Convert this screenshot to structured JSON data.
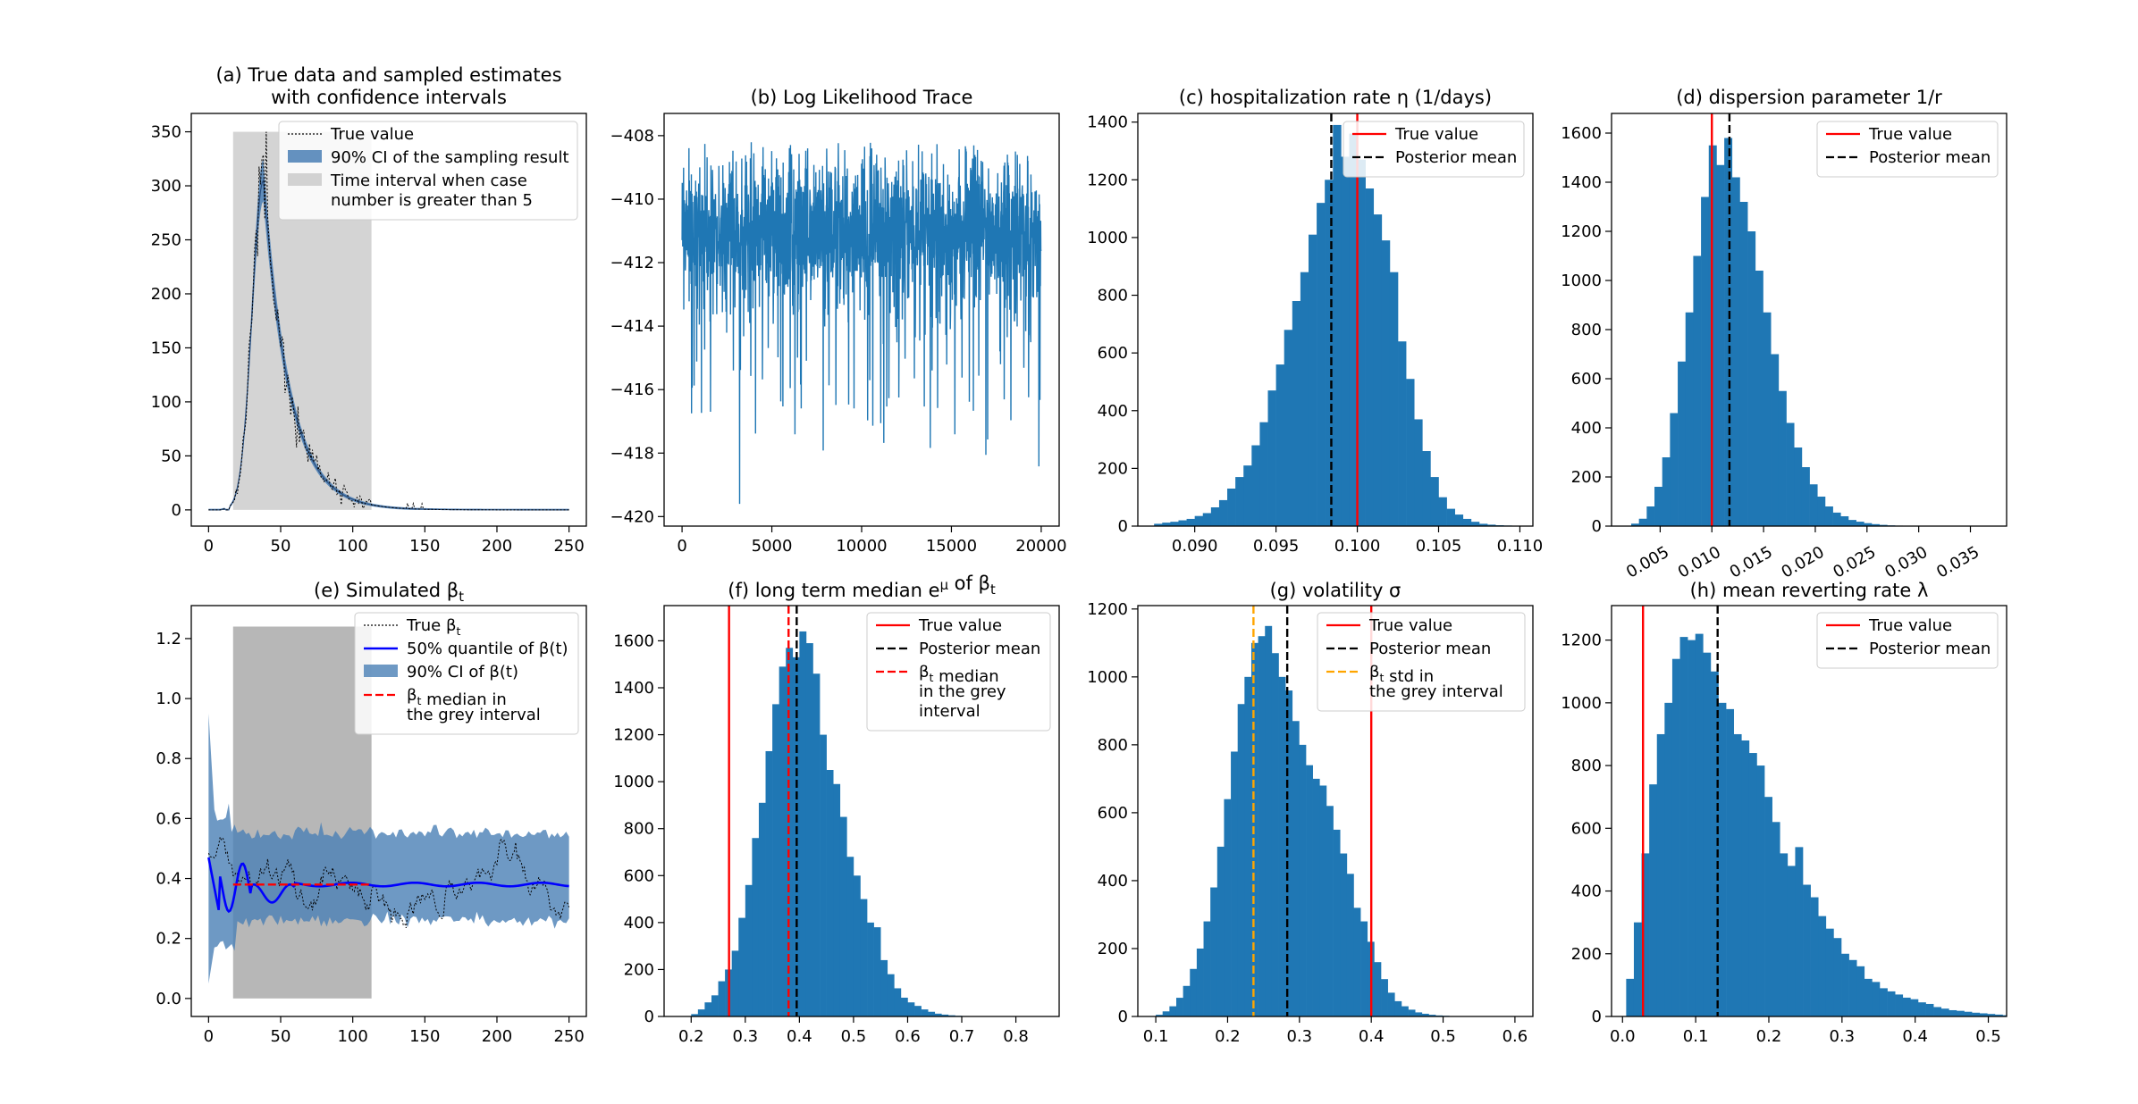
{
  "figure": {
    "background": "#ffffff"
  },
  "colors": {
    "blue": "#1f77b4",
    "band": "#4a7fb5",
    "red": "#ff0000",
    "black": "#000000",
    "orange": "#ffa500",
    "grey": "#bdbdbd",
    "darkgrey": "#999999",
    "line_blue": "#0000ff"
  },
  "chart_data": [
    {
      "id": "a",
      "type": "line",
      "title": "(a) True data and sampled estimates",
      "title2": "with confidence intervals",
      "xlim": [
        -12,
        262
      ],
      "ylim": [
        -15,
        367
      ],
      "xticks": [
        0,
        50,
        100,
        150,
        200,
        250
      ],
      "yticks": [
        0,
        50,
        100,
        150,
        200,
        250,
        300,
        350
      ],
      "shade": {
        "x0": 17,
        "x1": 113,
        "y0": 0,
        "y1": 350
      },
      "series": [
        {
          "name": "True value",
          "kind": "true_cases"
        },
        {
          "name": "90% CI of the sampling result",
          "kind": "ci_band"
        }
      ],
      "legend": [
        "True value",
        "90% CI of the sampling result",
        "Time interval when case\n number is greater than 5"
      ],
      "legend_loc": "top-right"
    },
    {
      "id": "b",
      "type": "line",
      "title": "(b) Log Likelihood Trace",
      "xlim": [
        -1000,
        21000
      ],
      "ylim": [
        -420.3,
        -407.3
      ],
      "xticks": [
        0,
        5000,
        10000,
        15000,
        20000
      ],
      "yticks": [
        -420,
        -418,
        -416,
        -414,
        -412,
        -410,
        -408
      ],
      "n": 20000,
      "center": -411.0,
      "upper_bound": -408.2,
      "min_value": -419.6
    },
    {
      "id": "c",
      "type": "bar",
      "title": "(c) hospitalization rate η (1/days)",
      "xlim": [
        0.0865,
        0.1108
      ],
      "ylim": [
        0,
        1430
      ],
      "xticks": [
        0.09,
        0.095,
        0.1,
        0.105,
        0.11
      ],
      "yticks": [
        0,
        200,
        400,
        600,
        800,
        1000,
        1200,
        1400
      ],
      "bin_start": 0.0875,
      "bin_width": 0.0005,
      "counts": [
        8,
        12,
        15,
        20,
        25,
        35,
        45,
        65,
        90,
        130,
        170,
        210,
        280,
        360,
        470,
        560,
        680,
        780,
        880,
        1010,
        1120,
        1200,
        1390,
        1280,
        1360,
        1270,
        1170,
        1080,
        990,
        880,
        640,
        510,
        370,
        260,
        170,
        100,
        60,
        40,
        25,
        15,
        8,
        5,
        3,
        2,
        1
      ],
      "vlines": [
        {
          "label": "True value",
          "x": 0.1,
          "style": "solid",
          "color": "#ff0000"
        },
        {
          "label": "Posterior mean",
          "x": 0.0984,
          "style": "dashed",
          "color": "#000000"
        }
      ],
      "legend": [
        "True value",
        "Posterior mean"
      ]
    },
    {
      "id": "d",
      "type": "bar",
      "title": "(d) dispersion parameter 1/r",
      "xlim": [
        0.0003,
        0.0385
      ],
      "ylim": [
        0,
        1680
      ],
      "xticks": [
        0.005,
        0.01,
        0.015,
        0.02,
        0.025,
        0.03,
        0.035
      ],
      "yticks": [
        0,
        200,
        400,
        600,
        800,
        1000,
        1200,
        1400,
        1600
      ],
      "bin_start": 0.0022,
      "bin_width": 0.00075,
      "counts": [
        10,
        30,
        80,
        160,
        280,
        460,
        670,
        870,
        1100,
        1340,
        1550,
        1470,
        1580,
        1420,
        1320,
        1200,
        1040,
        870,
        700,
        550,
        420,
        320,
        240,
        170,
        120,
        80,
        55,
        40,
        25,
        18,
        12,
        8,
        5,
        3,
        2,
        1,
        1,
        1,
        1,
        1,
        1,
        1,
        1,
        1,
        1,
        1,
        1,
        1
      ],
      "vlines": [
        {
          "label": "True value",
          "x": 0.01,
          "style": "solid",
          "color": "#ff0000"
        },
        {
          "label": "Posterior mean",
          "x": 0.0117,
          "style": "dashed",
          "color": "#000000"
        }
      ],
      "legend": [
        "True value",
        "Posterior mean"
      ]
    },
    {
      "id": "e",
      "type": "line",
      "title": "(e) Simulated β",
      "title_sub": "t",
      "xlim": [
        -12,
        262
      ],
      "ylim": [
        -0.06,
        1.31
      ],
      "xticks": [
        0,
        50,
        100,
        150,
        200,
        250
      ],
      "yticks": [
        0.0,
        0.2,
        0.4,
        0.6,
        0.8,
        1.0,
        1.2
      ],
      "shade": {
        "x0": 17,
        "x1": 113,
        "y0": 0,
        "y1": 1.24
      },
      "median_line": {
        "x0": 17,
        "x1": 113,
        "y": 0.38
      },
      "legend": [
        "True β_t",
        "50% quantile of β(t)",
        "90% CI of β(t)",
        "β_t median in\n the grey interval"
      ],
      "legend_loc": "top-right"
    },
    {
      "id": "f",
      "type": "bar",
      "title": "(f) long term median e^μ of β_t",
      "xlim": [
        0.15,
        0.88
      ],
      "ylim": [
        0,
        1750
      ],
      "xticks": [
        0.2,
        0.3,
        0.4,
        0.5,
        0.6,
        0.7,
        0.8
      ],
      "yticks": [
        0,
        200,
        400,
        600,
        800,
        1000,
        1200,
        1400,
        1600
      ],
      "bin_start": 0.2,
      "bin_width": 0.0125,
      "counts": [
        10,
        30,
        60,
        90,
        150,
        200,
        280,
        420,
        560,
        760,
        910,
        1130,
        1330,
        1490,
        1570,
        1530,
        1640,
        1590,
        1460,
        1200,
        1050,
        990,
        850,
        680,
        600,
        500,
        400,
        380,
        240,
        180,
        120,
        80,
        60,
        45,
        30,
        20,
        12,
        8,
        5,
        3,
        2,
        1,
        1,
        1
      ],
      "vlines": [
        {
          "label": "True value",
          "x": 0.27,
          "style": "solid",
          "color": "#ff0000"
        },
        {
          "label": "Posterior mean",
          "x": 0.395,
          "style": "dashed",
          "color": "#000000"
        },
        {
          "label": "β_t median in the grey interval",
          "x": 0.38,
          "style": "dashed",
          "color": "#ff0000"
        }
      ],
      "legend": [
        "True value",
        "Posterior mean",
        "β_t median\n in the grey\n interval"
      ]
    },
    {
      "id": "g",
      "type": "bar",
      "title": "(g) volatility σ",
      "xlim": [
        0.075,
        0.625
      ],
      "ylim": [
        0,
        1210
      ],
      "xticks": [
        0.1,
        0.2,
        0.3,
        0.4,
        0.5,
        0.6
      ],
      "yticks": [
        0,
        200,
        400,
        600,
        800,
        1000,
        1200
      ],
      "bin_start": 0.1,
      "bin_width": 0.0095,
      "counts": [
        5,
        15,
        30,
        55,
        90,
        140,
        200,
        280,
        380,
        500,
        640,
        780,
        920,
        1000,
        1100,
        1120,
        1150,
        1070,
        1000,
        960,
        870,
        800,
        740,
        700,
        680,
        620,
        550,
        480,
        420,
        320,
        280,
        220,
        160,
        110,
        70,
        45,
        30,
        20,
        12,
        8,
        5,
        3,
        2,
        1,
        1,
        1,
        1,
        1,
        1,
        1,
        1
      ],
      "vlines": [
        {
          "label": "True value",
          "x": 0.4,
          "style": "solid",
          "color": "#ff0000"
        },
        {
          "label": "Posterior mean",
          "x": 0.283,
          "style": "dashed",
          "color": "#000000"
        },
        {
          "label": "β_t std in the grey interval",
          "x": 0.236,
          "style": "dashed",
          "color": "#ffa500"
        }
      ],
      "legend": [
        "True value",
        "Posterior mean",
        "β_t std in\n the  grey interval"
      ]
    },
    {
      "id": "h",
      "type": "bar",
      "title": "(h) mean reverting rate λ",
      "xlim": [
        -0.015,
        0.525
      ],
      "ylim": [
        0,
        1310
      ],
      "xticks": [
        0.0,
        0.1,
        0.2,
        0.3,
        0.4,
        0.5
      ],
      "yticks": [
        0,
        200,
        400,
        600,
        800,
        1000,
        1200
      ],
      "bin_start": 0.005,
      "bin_width": 0.0105,
      "counts": [
        120,
        300,
        520,
        740,
        900,
        1000,
        1140,
        1210,
        1200,
        1220,
        1160,
        1100,
        1000,
        980,
        900,
        880,
        840,
        800,
        700,
        620,
        520,
        480,
        540,
        420,
        380,
        320,
        280,
        250,
        200,
        180,
        160,
        120,
        110,
        90,
        80,
        70,
        60,
        55,
        45,
        40,
        30,
        25,
        20,
        18,
        15,
        12,
        10,
        8,
        6,
        4
      ],
      "vlines": [
        {
          "label": "True value",
          "x": 0.028,
          "style": "solid",
          "color": "#ff0000"
        },
        {
          "label": "Posterior mean",
          "x": 0.13,
          "style": "dashed",
          "color": "#000000"
        }
      ],
      "legend": [
        "True value",
        "Posterior mean"
      ]
    }
  ]
}
